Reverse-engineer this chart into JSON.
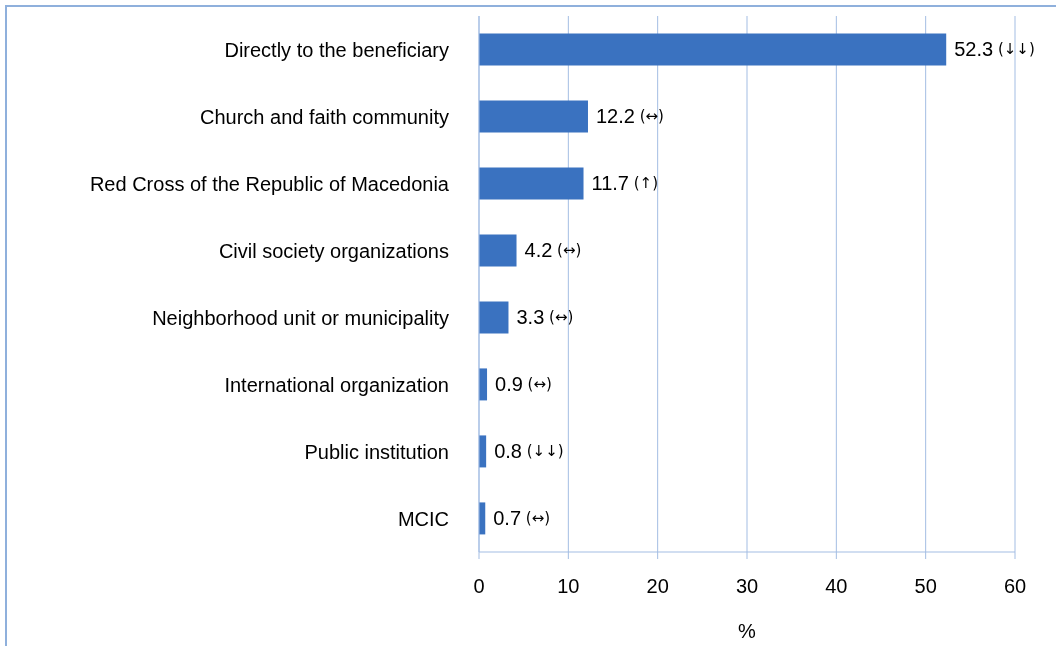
{
  "chart_data": {
    "type": "bar",
    "orientation": "horizontal",
    "categories": [
      "Directly to the beneficiary",
      "Church and faith community",
      "Red Cross of the Republic of Macedonia",
      "Civil society organizations",
      "Neighborhood unit or municipality",
      "International organization",
      "Public institution",
      "MCIC"
    ],
    "values": [
      52.3,
      12.2,
      11.7,
      4.2,
      3.3,
      0.9,
      0.8,
      0.7
    ],
    "value_labels": [
      "52.3 (↓↓)",
      "12.2 (↔)",
      "11.7 (↑)",
      "4.2 (↔)",
      "3.3 (↔)",
      "0.9 (↔)",
      "0.8 (↓↓)",
      "0.7 (↔)"
    ],
    "color": "#3a72c0",
    "xlabel": "%",
    "xlim": [
      0,
      60
    ],
    "xticks": [
      0,
      10,
      20,
      30,
      40,
      50,
      60
    ],
    "grid": "x"
  }
}
